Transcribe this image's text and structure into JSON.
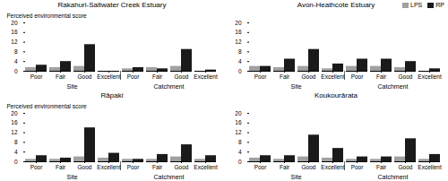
{
  "chart_data": [
    {
      "type": "bar",
      "title": "Rakahuri-Saltwater Creek Estuary",
      "ylabel": "Perceived environmental score",
      "categories": [
        "Poor",
        "Fair",
        "Good",
        "Excellent",
        "Poor",
        "Fair",
        "Good",
        "Excellent"
      ],
      "groups": [
        "Site",
        "Catchment"
      ],
      "series": [
        {
          "name": "LPS",
          "color": "#a0a0a0",
          "values": [
            1.5,
            1.5,
            2.0,
            0.0,
            1.0,
            1.5,
            2.0,
            0.0
          ]
        },
        {
          "name": "RP",
          "color": "#1a1a1a",
          "values": [
            2.5,
            4.0,
            11.0,
            0.0,
            1.5,
            1.0,
            9.0,
            0.5
          ]
        }
      ],
      "ylim": [
        0,
        20
      ],
      "yticks": [
        0,
        4,
        8,
        12,
        16,
        20
      ]
    },
    {
      "type": "bar",
      "title": "Avon-Heathcote Estuary",
      "categories": [
        "Poor",
        "Fair",
        "Good",
        "Excellent",
        "Poor",
        "Fair",
        "Good",
        "Excellent"
      ],
      "groups": [
        "Site",
        "Catchment"
      ],
      "series": [
        {
          "name": "LPS",
          "color": "#a0a0a0",
          "values": [
            2.0,
            1.5,
            2.0,
            1.0,
            2.0,
            2.0,
            1.5,
            0.0
          ]
        },
        {
          "name": "RP",
          "color": "#1a1a1a",
          "values": [
            2.0,
            5.0,
            9.0,
            3.0,
            5.0,
            5.0,
            4.0,
            1.0
          ]
        }
      ],
      "ylim": [
        0,
        20
      ],
      "yticks": [
        0,
        4,
        8,
        12,
        16,
        20
      ],
      "legend": "upper right"
    },
    {
      "type": "bar",
      "title": "Rāpaki",
      "ylabel": "Perceived environmental score",
      "categories": [
        "Poor",
        "Fair",
        "Good",
        "Excellent",
        "Poor",
        "Fair",
        "Good",
        "Excellent"
      ],
      "groups": [
        "Site",
        "Catchment"
      ],
      "series": [
        {
          "name": "LPS",
          "color": "#a0a0a0",
          "values": [
            1.0,
            1.0,
            2.0,
            1.5,
            1.0,
            1.0,
            2.0,
            1.0
          ]
        },
        {
          "name": "RP",
          "color": "#1a1a1a",
          "values": [
            2.5,
            1.5,
            14.0,
            3.5,
            1.0,
            3.0,
            7.0,
            2.5
          ]
        }
      ],
      "ylim": [
        0,
        20
      ],
      "yticks": [
        0,
        4,
        8,
        12,
        16,
        20
      ]
    },
    {
      "type": "bar",
      "title": "Koukourārata",
      "categories": [
        "Poor",
        "Fair",
        "Good",
        "Excellent",
        "Poor",
        "Fair",
        "Good",
        "Excellent"
      ],
      "groups": [
        "Site",
        "Catchment"
      ],
      "series": [
        {
          "name": "LPS",
          "color": "#a0a0a0",
          "values": [
            1.5,
            1.0,
            2.0,
            1.5,
            1.0,
            1.0,
            2.0,
            1.0
          ]
        },
        {
          "name": "RP",
          "color": "#1a1a1a",
          "values": [
            2.5,
            2.5,
            11.0,
            5.5,
            2.0,
            2.0,
            9.5,
            3.0
          ]
        }
      ],
      "ylim": [
        0,
        20
      ],
      "yticks": [
        0,
        4,
        8,
        12,
        16,
        20
      ]
    }
  ]
}
